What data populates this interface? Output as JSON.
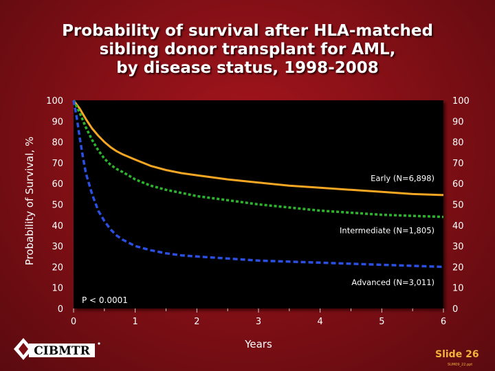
{
  "title_lines": [
    "Probability of survival after HLA-matched",
    "sibling donor transplant for AML,",
    "by disease status, 1998-2008"
  ],
  "footer": {
    "slide": "Slide 26",
    "code": "SUM09_22.ppt",
    "logo_text": "CIBMTR"
  },
  "colors": {
    "plot_bg": "#000000",
    "early": "#f5a623",
    "intermediate": "#2cb52c",
    "advanced": "#2b4fe0",
    "text": "#ffffff"
  },
  "chart_data": {
    "type": "line",
    "title": "Probability of survival after HLA-matched sibling donor transplant for AML, by disease status, 1998-2008",
    "xlabel": "Years",
    "ylabel": "Probability of Survival, %",
    "xlim": [
      0,
      6
    ],
    "ylim": [
      0,
      100
    ],
    "x_ticks": [
      "0",
      "1",
      "2",
      "3",
      "4",
      "5",
      "6"
    ],
    "y_ticks": [
      "0",
      "10",
      "20",
      "30",
      "40",
      "50",
      "60",
      "70",
      "80",
      "90",
      "100"
    ],
    "annotation": "P < 0.0001",
    "series": [
      {
        "name": "Early (N=6,898)",
        "style": "solid",
        "color": "#f5a623",
        "x": [
          0,
          0.1,
          0.2,
          0.3,
          0.4,
          0.5,
          0.6,
          0.7,
          0.8,
          1.0,
          1.25,
          1.5,
          1.75,
          2.0,
          2.5,
          3.0,
          3.5,
          4.0,
          4.5,
          5.0,
          5.5,
          6.0
        ],
        "y": [
          100,
          96,
          91,
          86.5,
          83,
          80,
          77.5,
          75.5,
          74,
          71.5,
          68.5,
          66.5,
          65,
          64,
          62,
          60.5,
          59,
          58,
          57,
          56,
          55,
          54.5
        ]
      },
      {
        "name": "Intermediate (N=1,805)",
        "style": "dashed",
        "color": "#2cb52c",
        "x": [
          0,
          0.1,
          0.2,
          0.3,
          0.4,
          0.5,
          0.6,
          0.7,
          0.8,
          1.0,
          1.25,
          1.5,
          1.75,
          2.0,
          2.5,
          3.0,
          3.5,
          4.0,
          4.5,
          5.0,
          5.5,
          6.0
        ],
        "y": [
          100,
          94,
          87,
          81,
          76,
          72,
          69,
          67,
          65.5,
          62,
          59,
          57,
          55.5,
          54,
          52,
          50,
          48.5,
          47,
          46,
          45,
          44.5,
          44
        ]
      },
      {
        "name": "Advanced (N=3,011)",
        "style": "dashed",
        "color": "#2b4fe0",
        "x": [
          0,
          0.05,
          0.1,
          0.15,
          0.2,
          0.3,
          0.4,
          0.5,
          0.6,
          0.7,
          0.8,
          1.0,
          1.25,
          1.5,
          1.75,
          2.0,
          2.5,
          3.0,
          3.5,
          4.0,
          4.5,
          5.0,
          5.5,
          6.0
        ],
        "y": [
          100,
          92,
          82,
          73,
          65,
          55,
          47,
          42,
          38,
          35,
          33,
          30,
          28,
          26.5,
          25.5,
          25,
          24,
          23,
          22.5,
          22,
          21.5,
          21,
          20.5,
          20
        ]
      }
    ]
  }
}
